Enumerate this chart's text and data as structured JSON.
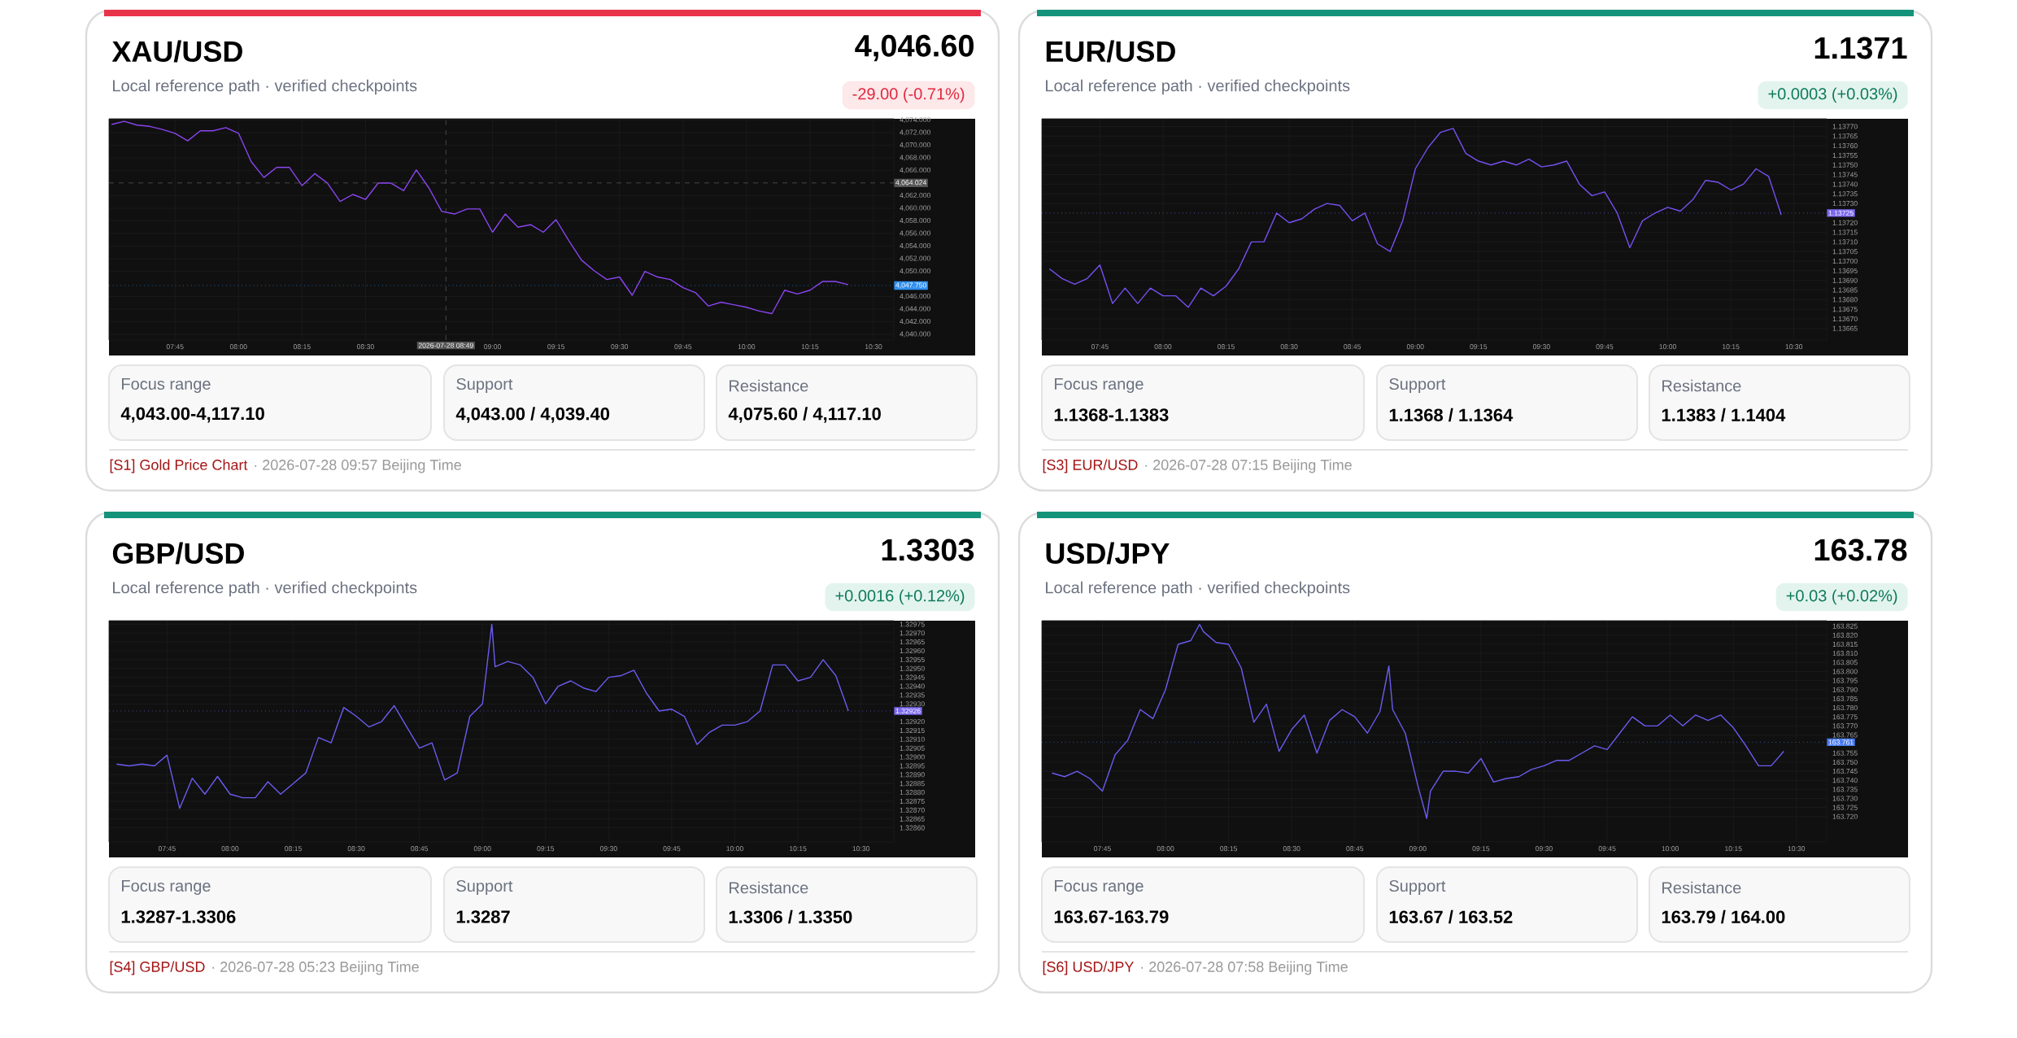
{
  "chart_data": [
    {
      "type": "line",
      "title": "XAU/USD",
      "subtitle": "Local reference path · verified checkpoints",
      "color": "#8a45f0",
      "grid": true,
      "annotations": [
        "4,046.60",
        "-29.00 (-0.71%)",
        "Focus range",
        "4,043.00-4,117.10",
        "Support",
        "4,043.00 / 4,039.40",
        "Resistance",
        "4,075.60 / 4,117.10",
        "[S1] Gold Price Chart",
        "· 2026-07-28 09:57 Beijing Time",
        "2026-07-28 08:49"
      ],
      "x": [
        7.5,
        7.55,
        7.6,
        7.65,
        7.7,
        7.75,
        7.8,
        7.85,
        7.9,
        7.95,
        8.0,
        8.05,
        8.1,
        8.15,
        8.2,
        8.25,
        8.3,
        8.35,
        8.4,
        8.45,
        8.5,
        8.55,
        8.6,
        8.65,
        8.7,
        8.75,
        8.8,
        8.85,
        8.9,
        8.95,
        9.0,
        9.05,
        9.1,
        9.15,
        9.2,
        9.25,
        9.3,
        9.35,
        9.4,
        9.45,
        9.5,
        9.55,
        9.6,
        9.65,
        9.7,
        9.75,
        9.8,
        9.85,
        9.9,
        9.95,
        10.0,
        10.05,
        10.1,
        10.15,
        10.2,
        10.25,
        10.3,
        10.35,
        10.4
      ],
      "values": [
        4073.3,
        4073.8,
        4073.2,
        4073.0,
        4072.5,
        4071.9,
        4070.7,
        4072.3,
        4072.3,
        4072.8,
        4071.9,
        4067.4,
        4064.9,
        4066.5,
        4066.5,
        4063.6,
        4065.5,
        4064.0,
        4061.1,
        4062.2,
        4061.4,
        4064.0,
        4064.0,
        4062.8,
        4066.1,
        4063.2,
        4059.5,
        4059.1,
        4059.9,
        4059.9,
        4056.2,
        4059.1,
        4057.0,
        4057.4,
        4056.2,
        4058.2,
        4054.9,
        4051.8,
        4050.1,
        4048.7,
        4049.1,
        4046.2,
        4050.0,
        4049.1,
        4048.7,
        4047.4,
        4046.6,
        4044.5,
        4045.1,
        4044.7,
        4044.3,
        4043.7,
        4043.3,
        4047.0,
        4046.4,
        4047.0,
        4048.4,
        4048.4,
        4047.9
      ],
      "xlim": [
        7.49,
        10.58
      ],
      "ylim": [
        4039.1,
        4074.2
      ],
      "xticks": [
        {
          "value": 7.75,
          "label": "07:45"
        },
        {
          "value": 8.0,
          "label": "08:00"
        },
        {
          "value": 8.25,
          "label": "08:15"
        },
        {
          "value": 8.5,
          "label": "08:30"
        },
        {
          "value": 9.0,
          "label": "09:00"
        },
        {
          "value": 9.25,
          "label": "09:15"
        },
        {
          "value": 9.5,
          "label": "09:30"
        },
        {
          "value": 9.75,
          "label": "09:45"
        },
        {
          "value": 10.0,
          "label": "10:00"
        },
        {
          "value": 10.25,
          "label": "10:15"
        },
        {
          "value": 10.5,
          "label": "10:30"
        }
      ],
      "yticks": [
        {
          "value": 4040,
          "label": "4,040.000"
        },
        {
          "value": 4042,
          "label": "4,042.000"
        },
        {
          "value": 4044,
          "label": "4,044.000"
        },
        {
          "value": 4046,
          "label": "4,046.000"
        },
        {
          "value": 4050,
          "label": "4,050.000"
        },
        {
          "value": 4052,
          "label": "4,052.000"
        },
        {
          "value": 4054,
          "label": "4,054.000"
        },
        {
          "value": 4056,
          "label": "4,056.000"
        },
        {
          "value": 4058,
          "label": "4,058.000"
        },
        {
          "value": 4060,
          "label": "4,060.000"
        },
        {
          "value": 4062,
          "label": "4,062.000"
        },
        {
          "value": 4066,
          "label": "4,066.000"
        },
        {
          "value": 4068,
          "label": "4,068.000"
        },
        {
          "value": 4070,
          "label": "4,070.000"
        },
        {
          "value": 4072,
          "label": "4,072.000"
        },
        {
          "value": 4074,
          "label": "4,074.000"
        }
      ],
      "ref_lines": [
        {
          "axis": "y",
          "value": 4047.75,
          "label": "4,047.750",
          "color": "#2f8ff0",
          "line_style": "dotted"
        },
        {
          "axis": "y",
          "value": 4064.024,
          "label": "4,064.024",
          "color": "#555555",
          "line_style": "dashed"
        },
        {
          "axis": "x",
          "value": 8.816667,
          "color": "#555555",
          "line_style": "dashed"
        }
      ]
    },
    {
      "type": "line",
      "title": "EUR/USD",
      "subtitle": "Local reference path · verified checkpoints",
      "color": "#7650f0",
      "grid": true,
      "annotations": [
        "1.1371",
        "+0.0003 (+0.03%)",
        "Focus range",
        "1.1368-1.1383",
        "Support",
        "1.1368 / 1.1364",
        "Resistance",
        "1.1383 / 1.1404",
        "[S3] EUR/USD",
        "· 2026-07-28 07:15 Beijing Time"
      ],
      "x": [
        7.55,
        7.6,
        7.65,
        7.7,
        7.75,
        7.8,
        7.85,
        7.9,
        7.95,
        8.0,
        8.05,
        8.1,
        8.15,
        8.2,
        8.25,
        8.3,
        8.35,
        8.4,
        8.45,
        8.5,
        8.55,
        8.6,
        8.65,
        8.7,
        8.75,
        8.8,
        8.85,
        8.9,
        8.95,
        9.0,
        9.05,
        9.1,
        9.15,
        9.2,
        9.25,
        9.3,
        9.35,
        9.4,
        9.45,
        9.5,
        9.55,
        9.6,
        9.65,
        9.7,
        9.75,
        9.8,
        9.85,
        9.9,
        9.95,
        10.0,
        10.05,
        10.1,
        10.15,
        10.2,
        10.25,
        10.3,
        10.35,
        10.4,
        10.45
      ],
      "values": [
        1.13696,
        1.13691,
        1.13688,
        1.13691,
        1.13698,
        1.13678,
        1.13686,
        1.13678,
        1.13686,
        1.13682,
        1.13682,
        1.13676,
        1.13686,
        1.13682,
        1.13687,
        1.13696,
        1.1371,
        1.1371,
        1.13725,
        1.1372,
        1.13722,
        1.13727,
        1.1373,
        1.13729,
        1.13721,
        1.13725,
        1.13709,
        1.13705,
        1.13721,
        1.13748,
        1.13759,
        1.13767,
        1.13769,
        1.13756,
        1.13752,
        1.1375,
        1.13752,
        1.1375,
        1.13753,
        1.13749,
        1.1375,
        1.13752,
        1.1374,
        1.13734,
        1.13736,
        1.13725,
        1.13707,
        1.13721,
        1.13725,
        1.13728,
        1.13726,
        1.13732,
        1.13742,
        1.13741,
        1.13737,
        1.1374,
        1.13748,
        1.13744,
        1.13724
      ],
      "xlim": [
        7.52,
        10.63
      ],
      "ylim": [
        1.13659,
        1.13774
      ],
      "xticks": [
        {
          "value": 7.75,
          "label": "07:45"
        },
        {
          "value": 8.0,
          "label": "08:00"
        },
        {
          "value": 8.25,
          "label": "08:15"
        },
        {
          "value": 8.5,
          "label": "08:30"
        },
        {
          "value": 8.75,
          "label": "08:45"
        },
        {
          "value": 9.0,
          "label": "09:00"
        },
        {
          "value": 9.25,
          "label": "09:15"
        },
        {
          "value": 9.5,
          "label": "09:30"
        },
        {
          "value": 9.75,
          "label": "09:45"
        },
        {
          "value": 10.0,
          "label": "10:00"
        },
        {
          "value": 10.25,
          "label": "10:15"
        },
        {
          "value": 10.5,
          "label": "10:30"
        }
      ],
      "yticks": [
        {
          "value": 1.13665,
          "label": "1.13665"
        },
        {
          "value": 1.1367,
          "label": "1.13670"
        },
        {
          "value": 1.13675,
          "label": "1.13675"
        },
        {
          "value": 1.1368,
          "label": "1.13680"
        },
        {
          "value": 1.13685,
          "label": "1.13685"
        },
        {
          "value": 1.1369,
          "label": "1.13690"
        },
        {
          "value": 1.13695,
          "label": "1.13695"
        },
        {
          "value": 1.137,
          "label": "1.13700"
        },
        {
          "value": 1.13705,
          "label": "1.13705"
        },
        {
          "value": 1.1371,
          "label": "1.13710"
        },
        {
          "value": 1.13715,
          "label": "1.13715"
        },
        {
          "value": 1.1372,
          "label": "1.13720"
        },
        {
          "value": 1.1373,
          "label": "1.13730"
        },
        {
          "value": 1.13735,
          "label": "1.13735"
        },
        {
          "value": 1.1374,
          "label": "1.13740"
        },
        {
          "value": 1.13745,
          "label": "1.13745"
        },
        {
          "value": 1.1375,
          "label": "1.13750"
        },
        {
          "value": 1.13755,
          "label": "1.13755"
        },
        {
          "value": 1.1376,
          "label": "1.13760"
        },
        {
          "value": 1.13765,
          "label": "1.13765"
        },
        {
          "value": 1.1377,
          "label": "1.13770"
        }
      ],
      "ref_lines": [
        {
          "axis": "y",
          "value": 1.13725,
          "label": "1.13725",
          "color": "#7b68ee",
          "line_style": "dotted"
        }
      ]
    },
    {
      "type": "line",
      "title": "GBP/USD",
      "subtitle": "Local reference path · verified checkpoints",
      "color": "#6a5cf0",
      "grid": true,
      "annotations": [
        "1.3303",
        "+0.0016 (+0.12%)",
        "Focus range",
        "1.3287-1.3306",
        "Support",
        "1.3287",
        "Resistance",
        "1.3306 / 1.3350",
        "[S4] GBP/USD",
        "· 2026-07-28 05:23 Beijing Time"
      ],
      "x": [
        7.55,
        7.6,
        7.65,
        7.7,
        7.75,
        7.8,
        7.85,
        7.9,
        7.95,
        8.0,
        8.05,
        8.1,
        8.15,
        8.2,
        8.25,
        8.3,
        8.35,
        8.4,
        8.45,
        8.5,
        8.55,
        8.6,
        8.65,
        8.7,
        8.75,
        8.8,
        8.85,
        8.9,
        8.95,
        9.0,
        9.037,
        9.05,
        9.1,
        9.15,
        9.2,
        9.25,
        9.3,
        9.35,
        9.4,
        9.45,
        9.5,
        9.55,
        9.6,
        9.65,
        9.7,
        9.75,
        9.8,
        9.85,
        9.9,
        9.95,
        10.0,
        10.05,
        10.1,
        10.15,
        10.2,
        10.25,
        10.3,
        10.35,
        10.4,
        10.45
      ],
      "values": [
        1.32896,
        1.32895,
        1.32896,
        1.32895,
        1.32901,
        1.32871,
        1.32888,
        1.32879,
        1.32889,
        1.32879,
        1.32877,
        1.32877,
        1.32886,
        1.32879,
        1.32885,
        1.32891,
        1.32911,
        1.32908,
        1.32928,
        1.32923,
        1.32917,
        1.3292,
        1.32929,
        1.32917,
        1.32905,
        1.32908,
        1.32887,
        1.32891,
        1.32923,
        1.3293,
        1.32975,
        1.32951,
        1.32954,
        1.32952,
        1.32945,
        1.3293,
        1.3294,
        1.32943,
        1.32939,
        1.32937,
        1.32945,
        1.32946,
        1.32949,
        1.32936,
        1.32926,
        1.32927,
        1.32923,
        1.32907,
        1.32914,
        1.32918,
        1.32918,
        1.3292,
        1.32926,
        1.32952,
        1.32952,
        1.32943,
        1.32945,
        1.32955,
        1.32946,
        1.32926
      ],
      "xlim": [
        7.52,
        10.63
      ],
      "ylim": [
        1.32852,
        1.32977
      ],
      "xticks": [
        {
          "value": 7.75,
          "label": "07:45"
        },
        {
          "value": 8.0,
          "label": "08:00"
        },
        {
          "value": 8.25,
          "label": "08:15"
        },
        {
          "value": 8.5,
          "label": "08:30"
        },
        {
          "value": 8.75,
          "label": "08:45"
        },
        {
          "value": 9.0,
          "label": "09:00"
        },
        {
          "value": 9.25,
          "label": "09:15"
        },
        {
          "value": 9.5,
          "label": "09:30"
        },
        {
          "value": 9.75,
          "label": "09:45"
        },
        {
          "value": 10.0,
          "label": "10:00"
        },
        {
          "value": 10.25,
          "label": "10:15"
        },
        {
          "value": 10.5,
          "label": "10:30"
        }
      ],
      "yticks": [
        {
          "value": 1.3286,
          "label": "1.32860"
        },
        {
          "value": 1.32865,
          "label": "1.32865"
        },
        {
          "value": 1.3287,
          "label": "1.32870"
        },
        {
          "value": 1.32875,
          "label": "1.32875"
        },
        {
          "value": 1.3288,
          "label": "1.32880"
        },
        {
          "value": 1.32885,
          "label": "1.32885"
        },
        {
          "value": 1.3289,
          "label": "1.32890"
        },
        {
          "value": 1.32895,
          "label": "1.32895"
        },
        {
          "value": 1.329,
          "label": "1.32900"
        },
        {
          "value": 1.32905,
          "label": "1.32905"
        },
        {
          "value": 1.3291,
          "label": "1.32910"
        },
        {
          "value": 1.32915,
          "label": "1.32915"
        },
        {
          "value": 1.3292,
          "label": "1.32920"
        },
        {
          "value": 1.3293,
          "label": "1.32930"
        },
        {
          "value": 1.32935,
          "label": "1.32935"
        },
        {
          "value": 1.3294,
          "label": "1.32940"
        },
        {
          "value": 1.32945,
          "label": "1.32945"
        },
        {
          "value": 1.3295,
          "label": "1.32950"
        },
        {
          "value": 1.32955,
          "label": "1.32955"
        },
        {
          "value": 1.3296,
          "label": "1.32960"
        },
        {
          "value": 1.32965,
          "label": "1.32965"
        },
        {
          "value": 1.3297,
          "label": "1.32970"
        },
        {
          "value": 1.32975,
          "label": "1.32975"
        }
      ],
      "ref_lines": [
        {
          "axis": "y",
          "value": 1.32926,
          "label": "1.32926",
          "color": "#7b68ee",
          "line_style": "dotted"
        }
      ]
    },
    {
      "type": "line",
      "title": "USD/JPY",
      "subtitle": "Local reference path · verified checkpoints",
      "color": "#6a5cf0",
      "grid": true,
      "annotations": [
        "163.78",
        "+0.03 (+0.02%)",
        "Focus range",
        "163.67-163.79",
        "Support",
        "163.67 / 163.52",
        "Resistance",
        "163.79 / 164.00",
        "[S6] USD/JPY",
        "· 2026-07-28 07:58 Beijing Time"
      ],
      "x": [
        7.55,
        7.6,
        7.65,
        7.7,
        7.75,
        7.8,
        7.85,
        7.9,
        7.95,
        8.0,
        8.05,
        8.1,
        8.135,
        8.15,
        8.2,
        8.25,
        8.3,
        8.35,
        8.4,
        8.45,
        8.5,
        8.55,
        8.6,
        8.65,
        8.7,
        8.75,
        8.8,
        8.85,
        8.885,
        8.9,
        8.95,
        9.0,
        9.035,
        9.05,
        9.1,
        9.15,
        9.2,
        9.25,
        9.3,
        9.35,
        9.4,
        9.45,
        9.5,
        9.55,
        9.6,
        9.65,
        9.7,
        9.75,
        9.8,
        9.85,
        9.9,
        9.95,
        10.0,
        10.05,
        10.1,
        10.15,
        10.2,
        10.25,
        10.3,
        10.35,
        10.4,
        10.45
      ],
      "values": [
        163.744,
        163.742,
        163.745,
        163.741,
        163.734,
        163.754,
        163.762,
        163.779,
        163.774,
        163.79,
        163.815,
        163.817,
        163.826,
        163.822,
        163.816,
        163.815,
        163.802,
        163.772,
        163.782,
        163.756,
        163.768,
        163.776,
        163.755,
        163.773,
        163.779,
        163.775,
        163.766,
        163.778,
        163.803,
        163.779,
        163.766,
        163.737,
        163.719,
        163.734,
        163.745,
        163.745,
        163.744,
        163.752,
        163.739,
        163.741,
        163.742,
        163.746,
        163.748,
        163.751,
        163.751,
        163.755,
        163.759,
        163.757,
        163.766,
        163.775,
        163.77,
        163.77,
        163.776,
        163.77,
        163.776,
        163.773,
        163.776,
        163.769,
        163.759,
        163.748,
        163.748,
        163.756
      ],
      "xlim": [
        7.51,
        10.62
      ],
      "ylim": [
        163.706,
        163.828
      ],
      "xticks": [
        {
          "value": 7.75,
          "label": "07:45"
        },
        {
          "value": 8.0,
          "label": "08:00"
        },
        {
          "value": 8.25,
          "label": "08:15"
        },
        {
          "value": 8.5,
          "label": "08:30"
        },
        {
          "value": 8.75,
          "label": "08:45"
        },
        {
          "value": 9.0,
          "label": "09:00"
        },
        {
          "value": 9.25,
          "label": "09:15"
        },
        {
          "value": 9.5,
          "label": "09:30"
        },
        {
          "value": 9.75,
          "label": "09:45"
        },
        {
          "value": 10.0,
          "label": "10:00"
        },
        {
          "value": 10.25,
          "label": "10:15"
        },
        {
          "value": 10.5,
          "label": "10:30"
        }
      ],
      "yticks": [
        {
          "value": 163.72,
          "label": "163.720"
        },
        {
          "value": 163.725,
          "label": "163.725"
        },
        {
          "value": 163.73,
          "label": "163.730"
        },
        {
          "value": 163.735,
          "label": "163.735"
        },
        {
          "value": 163.74,
          "label": "163.740"
        },
        {
          "value": 163.745,
          "label": "163.745"
        },
        {
          "value": 163.75,
          "label": "163.750"
        },
        {
          "value": 163.755,
          "label": "163.755"
        },
        {
          "value": 163.765,
          "label": "163.765"
        },
        {
          "value": 163.77,
          "label": "163.770"
        },
        {
          "value": 163.775,
          "label": "163.775"
        },
        {
          "value": 163.78,
          "label": "163.780"
        },
        {
          "value": 163.785,
          "label": "163.785"
        },
        {
          "value": 163.79,
          "label": "163.790"
        },
        {
          "value": 163.795,
          "label": "163.795"
        },
        {
          "value": 163.8,
          "label": "163.800"
        },
        {
          "value": 163.805,
          "label": "163.805"
        },
        {
          "value": 163.81,
          "label": "163.810"
        },
        {
          "value": 163.815,
          "label": "163.815"
        },
        {
          "value": 163.82,
          "label": "163.820"
        },
        {
          "value": 163.825,
          "label": "163.825"
        }
      ],
      "ref_lines": [
        {
          "axis": "y",
          "value": 163.761,
          "label": "163.761",
          "color": "#4a7cf0",
          "line_style": "dotted"
        }
      ]
    }
  ]
}
